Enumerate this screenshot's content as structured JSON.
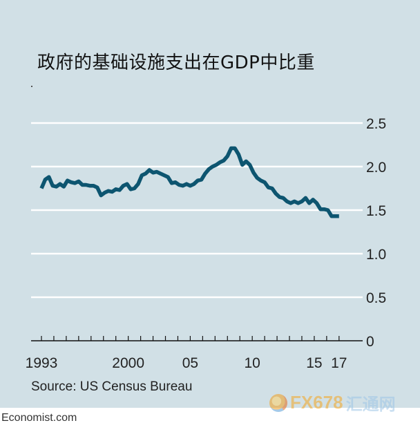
{
  "title": "政府的基础设施支出在GDP中比重",
  "source": "Source: US Census Bureau",
  "credit": "Economist.com",
  "watermark": {
    "brand": "FX678",
    "cn": "汇通网"
  },
  "colors": {
    "background": "#d1e0e6",
    "line": "#0d5570",
    "grid": "#ffffff",
    "axis": "#111111"
  },
  "chart_data": {
    "type": "line",
    "title": "政府的基础设施支出在GDP中比重",
    "xlim": [
      1993,
      2017.4
    ],
    "ylim": [
      0,
      2.5
    ],
    "yticks": [
      0,
      0.5,
      1.0,
      1.5,
      2.0,
      2.5
    ],
    "ytick_labels": [
      "0",
      "0.5",
      "1.0",
      "1.5",
      "2.0",
      "2.5"
    ],
    "xtick_labels": [
      {
        "x": 1993,
        "label": "1993"
      },
      {
        "x": 2000,
        "label": "2000"
      },
      {
        "x": 2005,
        "label": "05"
      },
      {
        "x": 2010,
        "label": "10"
      },
      {
        "x": 2015,
        "label": "15"
      },
      {
        "x": 2017,
        "label": "17"
      }
    ],
    "y_axis_side": "right",
    "grid": true,
    "series": [
      {
        "x": [
          1993.0,
          1993.3,
          1993.6,
          1993.9,
          1994.2,
          1994.5,
          1994.8,
          1995.1,
          1995.4,
          1995.7,
          1996.0,
          1996.3,
          1996.6,
          1996.9,
          1997.2,
          1997.5,
          1997.8,
          1998.1,
          1998.4,
          1998.7,
          1999.0,
          1999.3,
          1999.6,
          1999.9,
          2000.2,
          2000.5,
          2000.8,
          2001.1,
          2001.4,
          2001.7,
          2002.0,
          2002.3,
          2002.6,
          2002.9,
          2003.2,
          2003.5,
          2003.8,
          2004.1,
          2004.4,
          2004.7,
          2005.0,
          2005.3,
          2005.6,
          2005.9,
          2006.2,
          2006.5,
          2006.8,
          2007.1,
          2007.4,
          2007.7,
          2008.0,
          2008.3,
          2008.6,
          2008.9,
          2009.2,
          2009.5,
          2009.8,
          2010.1,
          2010.4,
          2010.7,
          2011.0,
          2011.3,
          2011.6,
          2011.9,
          2012.2,
          2012.5,
          2012.8,
          2013.1,
          2013.4,
          2013.7,
          2014.0,
          2014.3,
          2014.6,
          2014.9,
          2015.2,
          2015.5,
          2015.8,
          2016.1,
          2016.4,
          2016.7,
          2017.0
        ],
        "values": [
          1.75,
          1.85,
          1.88,
          1.78,
          1.77,
          1.8,
          1.77,
          1.84,
          1.82,
          1.81,
          1.83,
          1.79,
          1.79,
          1.78,
          1.78,
          1.76,
          1.67,
          1.7,
          1.72,
          1.71,
          1.74,
          1.73,
          1.78,
          1.8,
          1.74,
          1.75,
          1.8,
          1.9,
          1.92,
          1.96,
          1.93,
          1.94,
          1.92,
          1.9,
          1.88,
          1.81,
          1.82,
          1.79,
          1.78,
          1.8,
          1.78,
          1.8,
          1.84,
          1.85,
          1.92,
          1.97,
          2.0,
          2.02,
          2.05,
          2.07,
          2.12,
          2.21,
          2.21,
          2.14,
          2.02,
          2.06,
          2.02,
          1.93,
          1.87,
          1.84,
          1.82,
          1.76,
          1.75,
          1.69,
          1.65,
          1.64,
          1.6,
          1.58,
          1.6,
          1.58,
          1.6,
          1.64,
          1.58,
          1.62,
          1.58,
          1.51,
          1.51,
          1.5,
          1.43,
          1.43,
          1.43
        ]
      }
    ]
  }
}
